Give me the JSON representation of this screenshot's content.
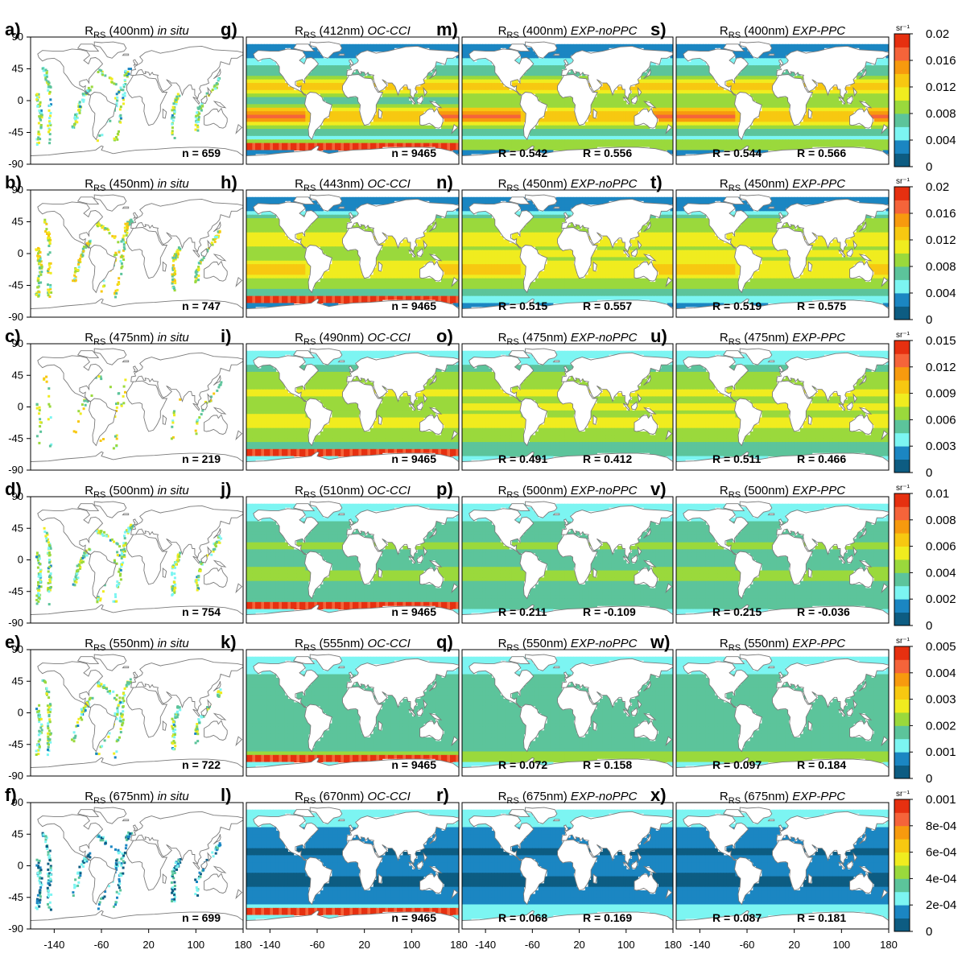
{
  "chart_data": {
    "type": "heatmap",
    "description_axes": {
      "x_range": [
        -180,
        180
      ],
      "y_range": [
        -90,
        90
      ],
      "x_ticks": [
        "-140",
        "-60",
        "20",
        "100",
        "180"
      ],
      "y_ticks": [
        "90",
        "45",
        "0",
        "-45",
        "-90"
      ]
    },
    "columns": [
      {
        "source": "in situ"
      },
      {
        "source": "OC-CCI"
      },
      {
        "source": "EXP-noPPC"
      },
      {
        "source": "EXP-PPC"
      }
    ],
    "rows": [
      {
        "unit": "sr⁻¹",
        "colorbar_ticks": [
          "0.02",
          "0.016",
          "0.012",
          "0.008",
          "0.004",
          "0"
        ],
        "panels": [
          {
            "letter": "a)",
            "wl": "(400nm)",
            "src": "in situ",
            "stat1": "n = 659",
            "stat2": ""
          },
          {
            "letter": "g)",
            "wl": "(412nm)",
            "src": "OC-CCI",
            "stat1": "n = 9465",
            "stat2": ""
          },
          {
            "letter": "m)",
            "wl": "(400nm)",
            "src": "EXP-noPPC",
            "stat1": "R =  0.542",
            "stat2": "R =  0.556"
          },
          {
            "letter": "s)",
            "wl": "(400nm)",
            "src": "EXP-PPC",
            "stat1": "R =  0.544",
            "stat2": "R =  0.566"
          }
        ]
      },
      {
        "unit": "sr⁻¹",
        "colorbar_ticks": [
          "0.02",
          "0.016",
          "0.012",
          "0.008",
          "0.004",
          "0"
        ],
        "panels": [
          {
            "letter": "b)",
            "wl": "(450nm)",
            "src": "in situ",
            "stat1": "n = 747",
            "stat2": ""
          },
          {
            "letter": "h)",
            "wl": "(443nm)",
            "src": "OC-CCI",
            "stat1": "n = 9465",
            "stat2": ""
          },
          {
            "letter": "n)",
            "wl": "(450nm)",
            "src": "EXP-noPPC",
            "stat1": "R =  0.515",
            "stat2": "R =  0.557"
          },
          {
            "letter": "t)",
            "wl": "(450nm)",
            "src": "EXP-PPC",
            "stat1": "R =  0.519",
            "stat2": "R =  0.575"
          }
        ]
      },
      {
        "unit": "sr⁻¹",
        "colorbar_ticks": [
          "0.015",
          "0.012",
          "0.009",
          "0.006",
          "0.003",
          "0"
        ],
        "panels": [
          {
            "letter": "c)",
            "wl": "(475nm)",
            "src": "in situ",
            "stat1": "n = 219",
            "stat2": ""
          },
          {
            "letter": "i)",
            "wl": "(490nm)",
            "src": "OC-CCI",
            "stat1": "n = 9465",
            "stat2": ""
          },
          {
            "letter": "o)",
            "wl": "(475nm)",
            "src": "EXP-noPPC",
            "stat1": "R =  0.491",
            "stat2": "R =  0.412"
          },
          {
            "letter": "u)",
            "wl": "(475nm)",
            "src": "EXP-PPC",
            "stat1": "R =  0.511",
            "stat2": "R =  0.466"
          }
        ]
      },
      {
        "unit": "sr⁻¹",
        "colorbar_ticks": [
          "0.01",
          "0.008",
          "0.006",
          "0.004",
          "0.002",
          "0"
        ],
        "panels": [
          {
            "letter": "d)",
            "wl": "(500nm)",
            "src": "in situ",
            "stat1": "n = 754",
            "stat2": ""
          },
          {
            "letter": "j)",
            "wl": "(510nm)",
            "src": "OC-CCI",
            "stat1": "n = 9465",
            "stat2": ""
          },
          {
            "letter": "p)",
            "wl": "(500nm)",
            "src": "EXP-noPPC",
            "stat1": "R =  0.211",
            "stat2": "R =  -0.109"
          },
          {
            "letter": "v)",
            "wl": "(500nm)",
            "src": "EXP-PPC",
            "stat1": "R =  0.215",
            "stat2": "R =  -0.036"
          }
        ]
      },
      {
        "unit": "sr⁻¹",
        "colorbar_ticks": [
          "0.005",
          "0.004",
          "0.003",
          "0.002",
          "0.001",
          "0"
        ],
        "panels": [
          {
            "letter": "e)",
            "wl": "(550nm)",
            "src": "in situ",
            "stat1": "n = 722",
            "stat2": ""
          },
          {
            "letter": "k)",
            "wl": "(555nm)",
            "src": "OC-CCI",
            "stat1": "n = 9465",
            "stat2": ""
          },
          {
            "letter": "q)",
            "wl": "(550nm)",
            "src": "EXP-noPPC",
            "stat1": "R =  0.072",
            "stat2": "R =  0.158"
          },
          {
            "letter": "w)",
            "wl": "(550nm)",
            "src": "EXP-PPC",
            "stat1": "R =  0.097",
            "stat2": "R =  0.184"
          }
        ]
      },
      {
        "unit": "sr⁻¹",
        "colorbar_ticks": [
          "0.001",
          "8e-04",
          "6e-04",
          "4e-04",
          "2e-04",
          "0"
        ],
        "panels": [
          {
            "letter": "f)",
            "wl": "(675nm)",
            "src": "in situ",
            "stat1": "n = 699",
            "stat2": ""
          },
          {
            "letter": "l)",
            "wl": "(670nm)",
            "src": "OC-CCI",
            "stat1": "n = 9465",
            "stat2": ""
          },
          {
            "letter": "r)",
            "wl": "(675nm)",
            "src": "EXP-noPPC",
            "stat1": "R =  0.068",
            "stat2": "R =  0.169"
          },
          {
            "letter": "x)",
            "wl": "(675nm)",
            "src": "EXP-PPC",
            "stat1": "R =  0.087",
            "stat2": "R =  0.181"
          }
        ]
      }
    ],
    "rrs_main": "R",
    "rrs_sub": "RS",
    "colorbar_colors": [
      "#0d5c82",
      "#1b86c2",
      "#7cf5f2",
      "#5cc49b",
      "#9ad93c",
      "#f0ec1f",
      "#f7c811",
      "#f79a0e",
      "#f5643a",
      "#e63010"
    ],
    "land_color": "#ffffff",
    "coast_color": "#7a7a7a"
  }
}
